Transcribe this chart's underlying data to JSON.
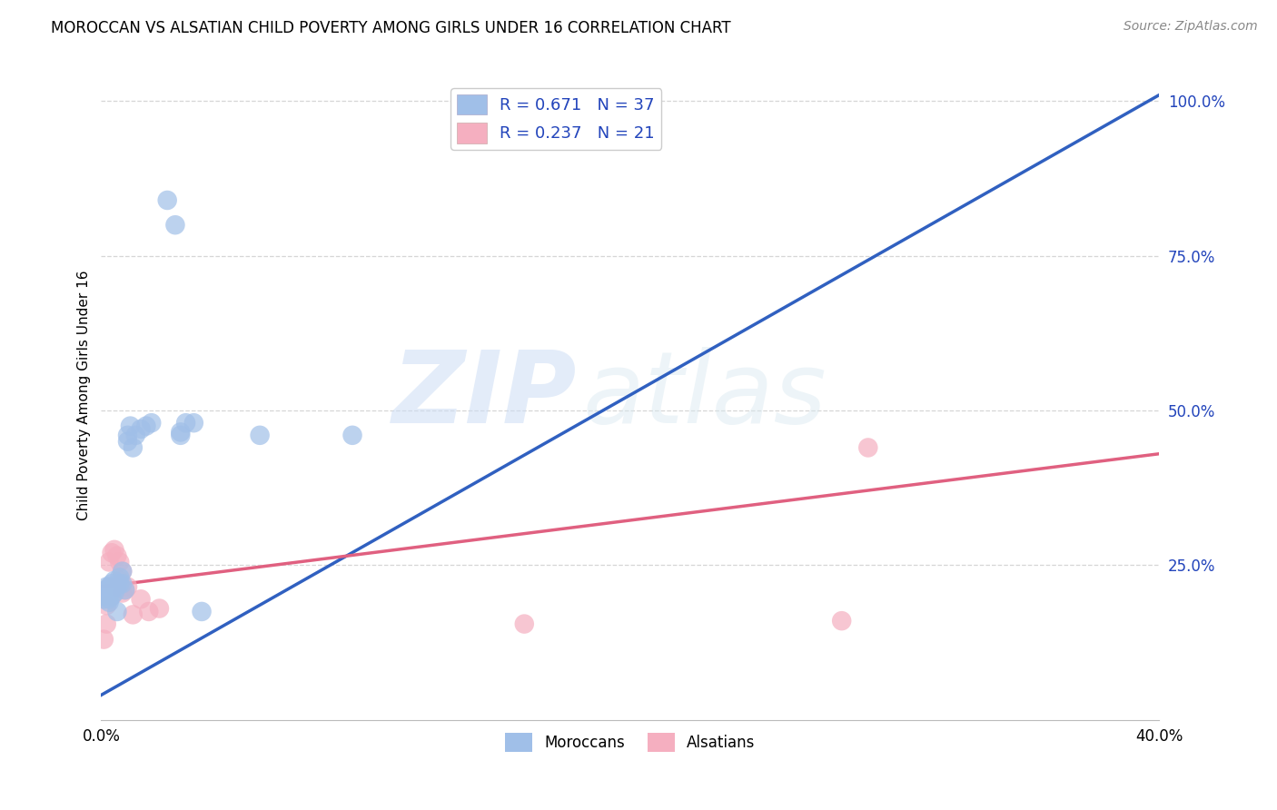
{
  "title": "MOROCCAN VS ALSATIAN CHILD POVERTY AMONG GIRLS UNDER 16 CORRELATION CHART",
  "source": "Source: ZipAtlas.com",
  "ylabel": "Child Poverty Among Girls Under 16",
  "xlim": [
    0.0,
    0.4
  ],
  "ylim": [
    0.0,
    1.05
  ],
  "xticks": [
    0.0,
    0.4
  ],
  "xticklabels": [
    "0.0%",
    "40.0%"
  ],
  "yticks_right": [
    0.25,
    0.5,
    0.75,
    1.0
  ],
  "yticklabels_right": [
    "25.0%",
    "50.0%",
    "75.0%",
    "100.0%"
  ],
  "moroccan_color": "#a0bfe8",
  "alsatian_color": "#f5afc0",
  "moroccan_line_color": "#3060c0",
  "alsatian_line_color": "#e06080",
  "R_moroccan": 0.671,
  "N_moroccan": 37,
  "R_alsatian": 0.237,
  "N_alsatian": 21,
  "legend_text_color": "#2244bb",
  "background_color": "#ffffff",
  "grid_color": "#cccccc",
  "watermark_zip": "ZIP",
  "watermark_atlas": "atlas",
  "blue_line_x": [
    0.0,
    0.4
  ],
  "blue_line_y": [
    0.04,
    1.01
  ],
  "pink_line_x": [
    0.0,
    0.4
  ],
  "pink_line_y": [
    0.215,
    0.43
  ],
  "moroccan_scatter_x": [
    0.001,
    0.001,
    0.002,
    0.002,
    0.002,
    0.003,
    0.003,
    0.003,
    0.004,
    0.004,
    0.004,
    0.005,
    0.005,
    0.006,
    0.006,
    0.007,
    0.007,
    0.008,
    0.008,
    0.009,
    0.01,
    0.01,
    0.011,
    0.012,
    0.013,
    0.015,
    0.017,
    0.019,
    0.03,
    0.035,
    0.03,
    0.025,
    0.028,
    0.032,
    0.038,
    0.06,
    0.095
  ],
  "moroccan_scatter_y": [
    0.2,
    0.195,
    0.21,
    0.205,
    0.215,
    0.195,
    0.215,
    0.19,
    0.21,
    0.2,
    0.22,
    0.205,
    0.225,
    0.175,
    0.215,
    0.22,
    0.23,
    0.24,
    0.22,
    0.21,
    0.46,
    0.45,
    0.475,
    0.44,
    0.46,
    0.47,
    0.475,
    0.48,
    0.465,
    0.48,
    0.46,
    0.84,
    0.8,
    0.48,
    0.175,
    0.46,
    0.46
  ],
  "alsatian_scatter_x": [
    0.001,
    0.002,
    0.002,
    0.003,
    0.004,
    0.005,
    0.005,
    0.006,
    0.007,
    0.007,
    0.008,
    0.008,
    0.009,
    0.01,
    0.012,
    0.015,
    0.018,
    0.022,
    0.16,
    0.28,
    0.29
  ],
  "alsatian_scatter_y": [
    0.13,
    0.155,
    0.185,
    0.255,
    0.27,
    0.275,
    0.215,
    0.265,
    0.255,
    0.225,
    0.205,
    0.24,
    0.21,
    0.215,
    0.17,
    0.195,
    0.175,
    0.18,
    0.155,
    0.16,
    0.44
  ]
}
